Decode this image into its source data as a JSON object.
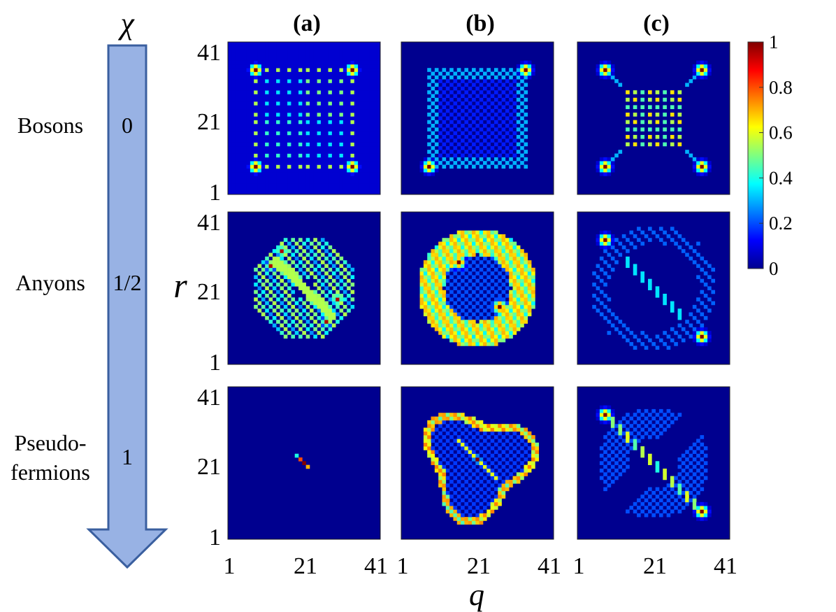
{
  "chart_data": {
    "type": "heatmap",
    "axis_labels": {
      "chi": "χ",
      "y": "r",
      "x": "q"
    },
    "column_labels": [
      "(a)",
      "(b)",
      "(c)"
    ],
    "rows": [
      {
        "name": "Bosons",
        "chi": "0"
      },
      {
        "name": "Anyons",
        "chi": "1/2"
      },
      {
        "name": "Pseudo-\nfermions",
        "chi": "1"
      }
    ],
    "xticks": [
      "1",
      "21",
      "41"
    ],
    "yticks": [
      "41",
      "21",
      "1"
    ],
    "grid_size": 41,
    "xlim": [
      1,
      41
    ],
    "ylim": [
      1,
      41
    ],
    "colorbar": {
      "min": 0,
      "max": 1,
      "ticks": [
        "1",
        "0.8",
        "0.6",
        "0.4",
        "0.2",
        "0"
      ],
      "colormap": "jet"
    },
    "panels": [
      {
        "row": "Bosons",
        "col": "(a)",
        "description": "square lattice of peaks, max at four corners",
        "peaks": [
          {
            "q": 8,
            "r": 34,
            "v": 1
          },
          {
            "q": 34,
            "r": 34,
            "v": 0.95
          },
          {
            "q": 8,
            "r": 8,
            "v": 1
          },
          {
            "q": 34,
            "r": 8,
            "v": 0.95
          }
        ]
      },
      {
        "row": "Bosons",
        "col": "(b)",
        "description": "two antidiagonal corner peaks with faint grid",
        "peaks": [
          {
            "q": 34,
            "r": 34,
            "v": 1
          },
          {
            "q": 8,
            "r": 8,
            "v": 1
          }
        ]
      },
      {
        "row": "Bosons",
        "col": "(c)",
        "description": "four corner peaks with central grid",
        "peaks": [
          {
            "q": 8,
            "r": 34,
            "v": 1
          },
          {
            "q": 34,
            "r": 34,
            "v": 0.95
          },
          {
            "q": 8,
            "r": 8,
            "v": 1
          },
          {
            "q": 34,
            "r": 8,
            "v": 0.95
          }
        ]
      },
      {
        "row": "Anyons",
        "col": "(a)",
        "description": "ring-like diagonal band structure",
        "peaks": [
          {
            "q": 12,
            "r": 27,
            "v": 0.95
          },
          {
            "q": 30,
            "r": 18,
            "v": 0.95
          }
        ]
      },
      {
        "row": "Anyons",
        "col": "(b)",
        "description": "broad ring with two inner peaks",
        "peaks": [
          {
            "q": 16,
            "r": 28,
            "v": 1
          },
          {
            "q": 27,
            "r": 16,
            "v": 1
          }
        ]
      },
      {
        "row": "Anyons",
        "col": "(c)",
        "description": "two diagonal corner peaks",
        "peaks": [
          {
            "q": 8,
            "r": 34,
            "v": 1
          },
          {
            "q": 34,
            "r": 8,
            "v": 1
          }
        ]
      },
      {
        "row": "Pseudo-\nfermions",
        "col": "(a)",
        "description": "single sharp central diagonal peak",
        "peaks": [
          {
            "q": 21,
            "r": 21,
            "v": 1
          }
        ]
      },
      {
        "row": "Pseudo-\nfermions",
        "col": "(b)",
        "description": "irregular ring with central diagonal peak",
        "peaks": [
          {
            "q": 21,
            "r": 22,
            "v": 1
          }
        ]
      },
      {
        "row": "Pseudo-\nfermions",
        "col": "(c)",
        "description": "two diagonal corner peaks with diagonal line",
        "peaks": [
          {
            "q": 8,
            "r": 34,
            "v": 1
          },
          {
            "q": 34,
            "r": 8,
            "v": 1
          }
        ]
      }
    ]
  }
}
